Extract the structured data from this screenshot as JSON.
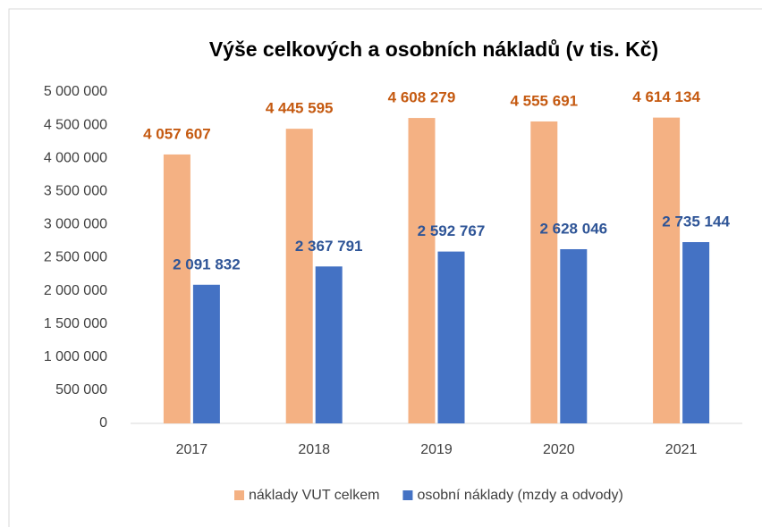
{
  "chart_data": {
    "type": "bar",
    "title": "Výše celkových a osobních nákladů (v tis. Kč)",
    "categories": [
      "2017",
      "2018",
      "2019",
      "2020",
      "2021"
    ],
    "series": [
      {
        "name": "náklady VUT celkem",
        "color": "#f4b183",
        "label_color": "#c55a11",
        "values": [
          4057607,
          4445595,
          4608279,
          4555691,
          4614134
        ],
        "value_labels": [
          "4 057 607",
          "4 445 595",
          "4 608 279",
          "4 555 691",
          "4 614 134"
        ]
      },
      {
        "name": "osobní náklady (mzdy a odvody)",
        "color": "#4472c4",
        "label_color": "#2f5597",
        "values": [
          2091832,
          2367791,
          2592767,
          2628046,
          2735144
        ],
        "value_labels": [
          "2 091 832",
          "2 367 791",
          "2 592 767",
          "2 628 046",
          "2 735 144"
        ]
      }
    ],
    "ylim": [
      0,
      5000000
    ],
    "yticks": [
      0,
      {
        "value": 500000,
        "label": "500 000"
      },
      {
        "value": 1000000,
        "label": "1 000 000"
      },
      {
        "value": 1500000,
        "label": "1 500 000"
      },
      {
        "value": 2000000,
        "label": "2 000 000"
      },
      {
        "value": 2500000,
        "label": "2 500 000"
      },
      {
        "value": 3000000,
        "label": "3 000 000"
      },
      {
        "value": 3500000,
        "label": "3 500 000"
      },
      {
        "value": 4000000,
        "label": "4 000 000"
      },
      {
        "value": 4500000,
        "label": "4 500 000"
      },
      {
        "value": 5000000,
        "label": "5 000 000"
      }
    ],
    "grid": false,
    "legend": "bottom"
  }
}
